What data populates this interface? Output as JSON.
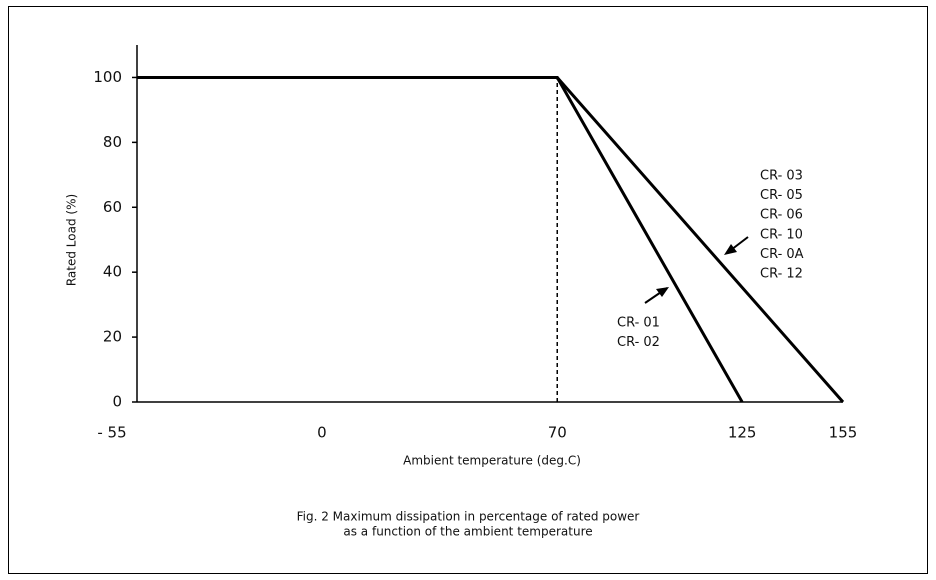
{
  "chart_data": {
    "type": "line",
    "xlabel": "Ambient temperature (deg.C)",
    "ylabel": "Rated Load (%)",
    "caption": [
      "Fig. 2 Maximum dissipation in percentage of rated power",
      "as a function of the ambient temperature"
    ],
    "xlim": [
      -55,
      155
    ],
    "ylim": [
      0,
      110
    ],
    "xticks": [
      {
        "value": -55,
        "label": "- 55"
      },
      0,
      70,
      125,
      155
    ],
    "yticks": [
      0,
      20,
      40,
      60,
      80,
      100
    ],
    "vline": 70,
    "series": [
      {
        "labels": [
          "CR- 01",
          "CR- 02"
        ],
        "color": "#000000",
        "x": [
          -55,
          70,
          125
        ],
        "values": [
          100,
          100,
          0
        ]
      },
      {
        "labels": [
          "CR- 03",
          "CR- 05",
          "CR- 06",
          "CR- 10",
          "CR- 0A",
          "CR- 12"
        ],
        "color": "#000000",
        "x": [
          -55,
          70,
          155
        ],
        "values": [
          100,
          100,
          0
        ]
      }
    ]
  }
}
